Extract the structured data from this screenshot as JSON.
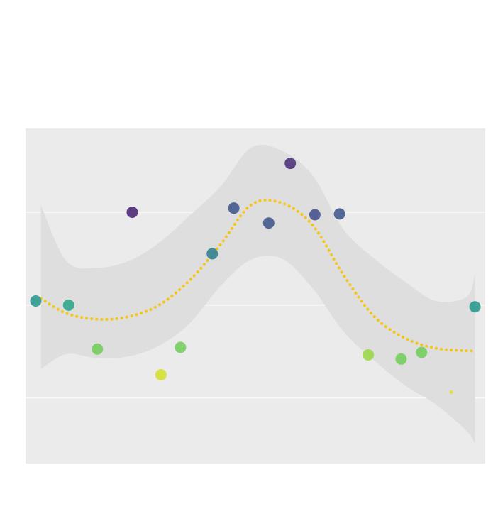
{
  "chart_data": {
    "type": "scatter",
    "title": "",
    "xlabel": "",
    "ylabel": "",
    "xlim": [
      -0.5,
      21.9
    ],
    "ylim": [
      1.21,
      5.25
    ],
    "grid": true,
    "gridlines_y": [
      2.0,
      3.12,
      4.24
    ],
    "colors": {
      "panel": "#ebebeb",
      "gridline": "#ffffff",
      "band": "#dedede",
      "trend": "#f5c518",
      "colormap": "viridis"
    },
    "points": [
      {
        "x": 0.0,
        "y": 3.17,
        "c": 0.52
      },
      {
        "x": 1.6,
        "y": 3.12,
        "c": 0.58
      },
      {
        "x": 3.0,
        "y": 2.59,
        "c": 0.78
      },
      {
        "x": 4.7,
        "y": 4.24,
        "c": 0.08
      },
      {
        "x": 6.1,
        "y": 2.28,
        "c": 0.93
      },
      {
        "x": 7.05,
        "y": 2.61,
        "c": 0.78
      },
      {
        "x": 8.6,
        "y": 3.74,
        "c": 0.42
      },
      {
        "x": 9.65,
        "y": 4.29,
        "c": 0.25
      },
      {
        "x": 11.35,
        "y": 4.11,
        "c": 0.25
      },
      {
        "x": 12.4,
        "y": 4.83,
        "c": 0.12
      },
      {
        "x": 13.6,
        "y": 4.21,
        "c": 0.22
      },
      {
        "x": 14.8,
        "y": 4.22,
        "c": 0.25
      },
      {
        "x": 16.2,
        "y": 2.52,
        "c": 0.84
      },
      {
        "x": 17.8,
        "y": 2.47,
        "c": 0.78
      },
      {
        "x": 18.8,
        "y": 2.55,
        "c": 0.78
      },
      {
        "x": 20.25,
        "y": 2.07,
        "c": 0.95,
        "small": true
      },
      {
        "x": 21.4,
        "y": 3.1,
        "c": 0.52
      }
    ],
    "trend": {
      "x": [
        0.25,
        1.5,
        3,
        4.5,
        6,
        7.5,
        9,
        10.5,
        12,
        13.5,
        15,
        16.5,
        18,
        19.5,
        21,
        21.4
      ],
      "y": [
        3.2,
        3.02,
        2.95,
        2.98,
        3.12,
        3.42,
        3.85,
        4.33,
        4.35,
        4.08,
        3.48,
        2.98,
        2.72,
        2.6,
        2.57,
        2.57
      ],
      "lower": [
        2.35,
        2.53,
        2.48,
        2.5,
        2.63,
        2.9,
        3.35,
        3.67,
        3.68,
        3.32,
        2.8,
        2.45,
        2.15,
        1.92,
        1.6,
        1.45
      ],
      "upper": [
        4.32,
        3.65,
        3.57,
        3.65,
        3.87,
        4.2,
        4.55,
        5.02,
        4.98,
        4.68,
        4.03,
        3.68,
        3.4,
        3.17,
        3.22,
        3.5
      ]
    }
  }
}
